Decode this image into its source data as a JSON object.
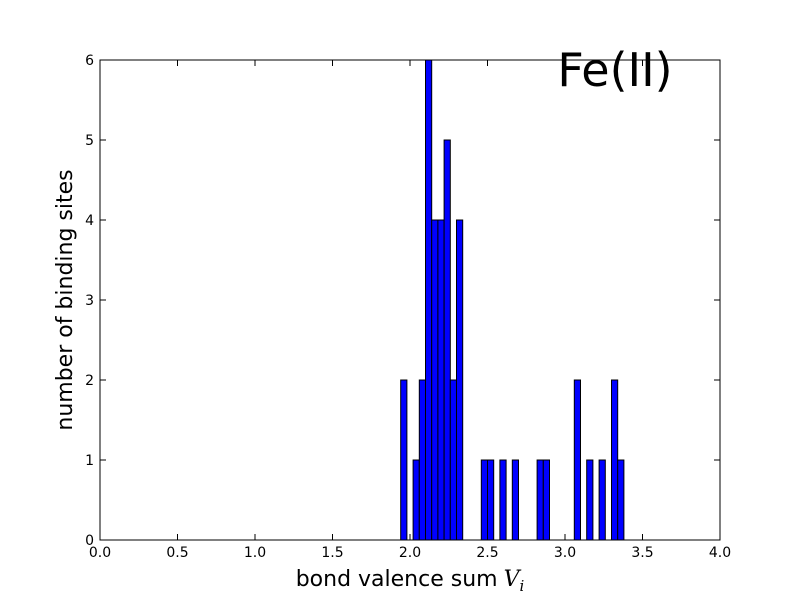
{
  "chart_data": {
    "type": "bar",
    "title": "",
    "xlabel": "bond valence sum",
    "xlabel_math": "V",
    "xlabel_math_sub": "i",
    "ylabel": "number of binding sites",
    "annotation": "Fe(II)",
    "xlim": [
      0.0,
      4.0
    ],
    "ylim": [
      0,
      6
    ],
    "xticks": [
      "0.0",
      "0.5",
      "1.0",
      "1.5",
      "2.0",
      "2.5",
      "3.0",
      "3.5",
      "4.0"
    ],
    "yticks": [
      "0",
      "1",
      "2",
      "3",
      "4",
      "5",
      "6"
    ],
    "grid": false,
    "bar_color": "#0000ff",
    "bin_width": 0.04,
    "bins": [
      {
        "x": 1.94,
        "value": 2
      },
      {
        "x": 2.02,
        "value": 1
      },
      {
        "x": 2.06,
        "value": 2
      },
      {
        "x": 2.1,
        "value": 6
      },
      {
        "x": 2.14,
        "value": 4
      },
      {
        "x": 2.18,
        "value": 4
      },
      {
        "x": 2.22,
        "value": 5
      },
      {
        "x": 2.26,
        "value": 2
      },
      {
        "x": 2.3,
        "value": 4
      },
      {
        "x": 2.46,
        "value": 1
      },
      {
        "x": 2.5,
        "value": 1
      },
      {
        "x": 2.58,
        "value": 1
      },
      {
        "x": 2.66,
        "value": 1
      },
      {
        "x": 2.82,
        "value": 1
      },
      {
        "x": 2.86,
        "value": 1
      },
      {
        "x": 3.06,
        "value": 2
      },
      {
        "x": 3.14,
        "value": 1
      },
      {
        "x": 3.22,
        "value": 1
      },
      {
        "x": 3.3,
        "value": 2
      },
      {
        "x": 3.34,
        "value": 1
      }
    ]
  }
}
